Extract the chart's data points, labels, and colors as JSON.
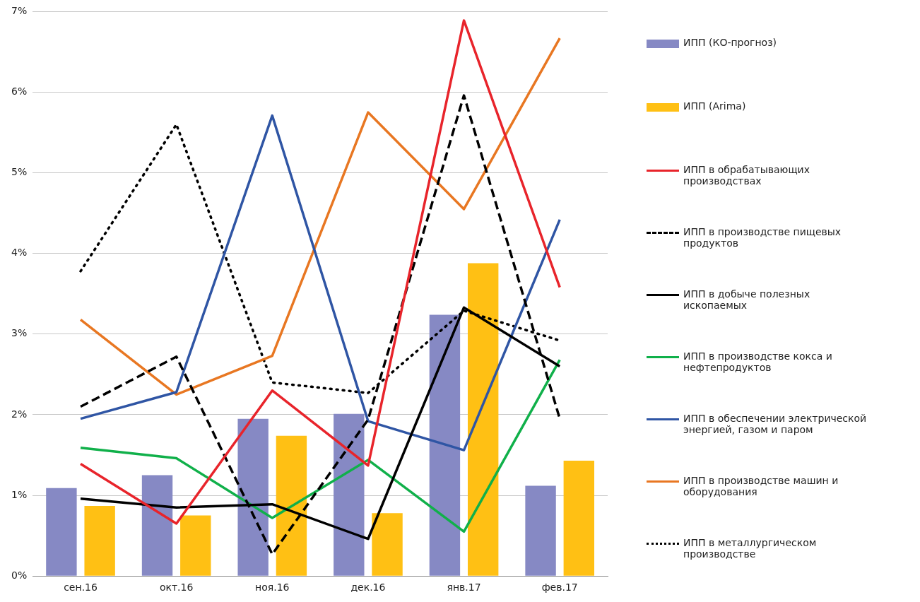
{
  "chart_data": {
    "type": "bar",
    "categories": [
      "сен.16",
      "окт.16",
      "ноя.16",
      "дек.16",
      "янв.17",
      "фев.17"
    ],
    "ylim": [
      0,
      7
    ],
    "yticks": [
      {
        "value": 0,
        "label": "0%"
      },
      {
        "value": 1,
        "label": "1%"
      },
      {
        "value": 2,
        "label": "2%"
      },
      {
        "value": 3,
        "label": "3%"
      },
      {
        "value": 4,
        "label": "4%"
      },
      {
        "value": 5,
        "label": "5%"
      },
      {
        "value": 6,
        "label": "6%"
      },
      {
        "value": 7,
        "label": "7%"
      }
    ],
    "grid": "y",
    "legend": "right",
    "marker": "none",
    "series": [
      {
        "name": "ИПП (КО-прогноз)",
        "color": "#8689c4",
        "values": [
          1.09,
          1.25,
          1.95,
          2.01,
          3.24,
          1.12
        ]
      },
      {
        "name": "ИПП (Arima)",
        "color": "#ffc014",
        "values": [
          0.87,
          0.75,
          1.74,
          0.78,
          3.88,
          1.43
        ]
      },
      {
        "name": "ИПП в обрабатывающих производствах",
        "type": "line",
        "color": "#e8242b",
        "line_style": "solid",
        "values": [
          1.39,
          0.65,
          2.3,
          1.37,
          6.89,
          3.58
        ]
      },
      {
        "name": "ИПП в производстве пищевых продуктов",
        "type": "line",
        "color": "#000000",
        "line_style": "dashed",
        "values": [
          2.1,
          2.72,
          0.27,
          1.94,
          5.96,
          1.95
        ]
      },
      {
        "name": "ИПП в добыче полезных ископаемых",
        "type": "line",
        "color": "#000000",
        "line_style": "solid",
        "values": [
          0.96,
          0.85,
          0.89,
          0.46,
          3.33,
          2.6
        ]
      },
      {
        "name": "ИПП в производстве кокса и нефтепродуктов",
        "type": "line",
        "color": "#10b04a",
        "line_style": "solid",
        "values": [
          1.59,
          1.46,
          0.72,
          1.44,
          0.55,
          2.68
        ]
      },
      {
        "name": "ИПП в обеспечении электрической энергией, газом и паром",
        "type": "line",
        "color": "#2f55a4",
        "line_style": "solid",
        "values": [
          1.95,
          2.28,
          5.71,
          1.92,
          1.56,
          4.42
        ]
      },
      {
        "name": "ИПП в производстве машин и оборудования",
        "type": "line",
        "color": "#e87722",
        "line_style": "solid",
        "values": [
          3.18,
          2.25,
          2.73,
          5.75,
          4.55,
          6.67
        ]
      },
      {
        "name": "ИПП в металлургическом производстве",
        "type": "line",
        "color": "#000000",
        "line_style": "dotted",
        "values": [
          3.78,
          5.6,
          2.4,
          2.27,
          3.29,
          2.92
        ]
      }
    ]
  }
}
